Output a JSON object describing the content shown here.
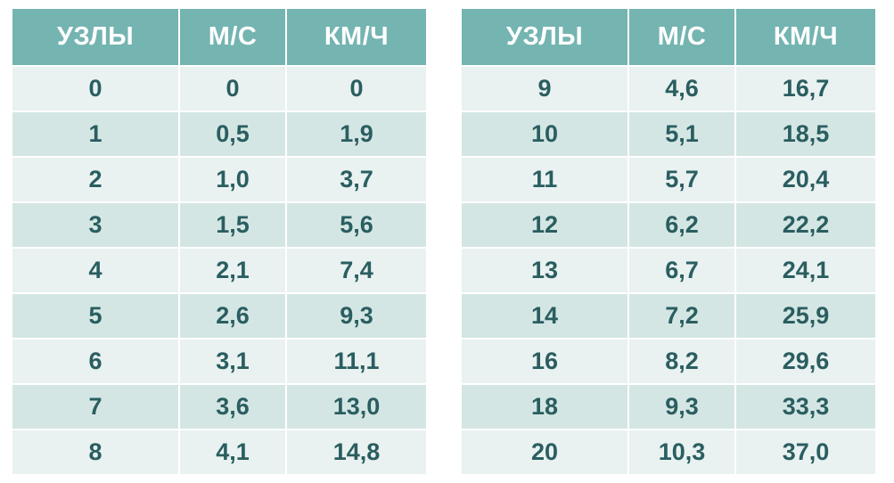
{
  "colors": {
    "header_bg": "#74b4b1",
    "header_fg": "#ffffff",
    "row_even_bg": "#e9f1f1",
    "row_odd_bg": "#d4e6e4",
    "cell_fg": "#2a5e60"
  },
  "table_left": {
    "columns": [
      "УЗЛЫ",
      "М/С",
      "КМ/Ч"
    ],
    "rows": [
      [
        "0",
        "0",
        "0"
      ],
      [
        "1",
        "0,5",
        "1,9"
      ],
      [
        "2",
        "1,0",
        "3,7"
      ],
      [
        "3",
        "1,5",
        "5,6"
      ],
      [
        "4",
        "2,1",
        "7,4"
      ],
      [
        "5",
        "2,6",
        "9,3"
      ],
      [
        "6",
        "3,1",
        "11,1"
      ],
      [
        "7",
        "3,6",
        "13,0"
      ],
      [
        "8",
        "4,1",
        "14,8"
      ]
    ]
  },
  "table_right": {
    "columns": [
      "УЗЛЫ",
      "М/С",
      "КМ/Ч"
    ],
    "rows": [
      [
        "9",
        "4,6",
        "16,7"
      ],
      [
        "10",
        "5,1",
        "18,5"
      ],
      [
        "11",
        "5,7",
        "20,4"
      ],
      [
        "12",
        "6,2",
        "22,2"
      ],
      [
        "13",
        "6,7",
        "24,1"
      ],
      [
        "14",
        "7,2",
        "25,9"
      ],
      [
        "16",
        "8,2",
        "29,6"
      ],
      [
        "18",
        "9,3",
        "33,3"
      ],
      [
        "20",
        "10,3",
        "37,0"
      ]
    ]
  }
}
